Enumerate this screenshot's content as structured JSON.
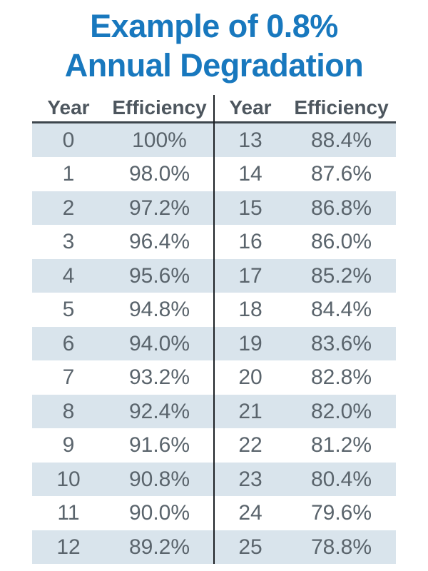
{
  "title": {
    "full": "Example of 0.8% Annual Degradation",
    "lines": [
      "Example of 0.8%",
      "Annual Degradation"
    ]
  },
  "colors": {
    "title_blue": "#1878be",
    "stripe": "#d9e4ec",
    "header_text": "#4d565e",
    "body_text": "#5a646c",
    "divider": "#1d2125"
  },
  "tables": [
    {
      "headers": [
        "Year",
        "Efficiency"
      ],
      "rows": [
        [
          "0",
          "100%"
        ],
        [
          "1",
          "98.0%"
        ],
        [
          "2",
          "97.2%"
        ],
        [
          "3",
          "96.4%"
        ],
        [
          "4",
          "95.6%"
        ],
        [
          "5",
          "94.8%"
        ],
        [
          "6",
          "94.0%"
        ],
        [
          "7",
          "93.2%"
        ],
        [
          "8",
          "92.4%"
        ],
        [
          "9",
          "91.6%"
        ],
        [
          "10",
          "90.8%"
        ],
        [
          "11",
          "90.0%"
        ],
        [
          "12",
          "89.2%"
        ]
      ]
    },
    {
      "headers": [
        "Year",
        "Efficiency"
      ],
      "rows": [
        [
          "13",
          "88.4%"
        ],
        [
          "14",
          "87.6%"
        ],
        [
          "15",
          "86.8%"
        ],
        [
          "16",
          "86.0%"
        ],
        [
          "17",
          "85.2%"
        ],
        [
          "18",
          "84.4%"
        ],
        [
          "19",
          "83.6%"
        ],
        [
          "20",
          "82.8%"
        ],
        [
          "21",
          "82.0%"
        ],
        [
          "22",
          "81.2%"
        ],
        [
          "23",
          "80.4%"
        ],
        [
          "24",
          "79.6%"
        ],
        [
          "25",
          "78.8%"
        ]
      ]
    }
  ],
  "chart_data": {
    "type": "table",
    "title": "Example of 0.8% Annual Degradation",
    "columns": [
      "Year",
      "Efficiency"
    ],
    "degradation_rate_pct_per_year": 0.8,
    "years": [
      0,
      1,
      2,
      3,
      4,
      5,
      6,
      7,
      8,
      9,
      10,
      11,
      12,
      13,
      14,
      15,
      16,
      17,
      18,
      19,
      20,
      21,
      22,
      23,
      24,
      25
    ],
    "efficiency_pct": [
      100,
      98.0,
      97.2,
      96.4,
      95.6,
      94.8,
      94.0,
      93.2,
      92.4,
      91.6,
      90.8,
      90.0,
      89.2,
      88.4,
      87.6,
      86.8,
      86.0,
      85.2,
      84.4,
      83.6,
      82.8,
      82.0,
      81.2,
      80.4,
      79.6,
      78.8
    ],
    "layout": "two side-by-side tables, years 0-12 left and 13-25 right, alternating row shading on even rows"
  }
}
